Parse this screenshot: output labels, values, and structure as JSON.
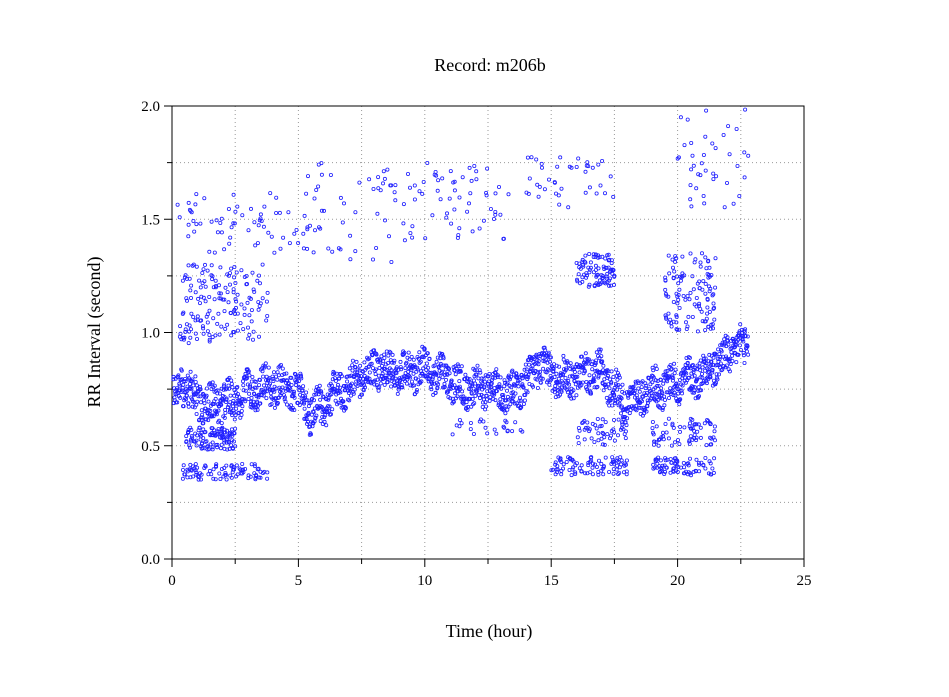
{
  "chart_data": {
    "type": "scatter",
    "title": "Record:  m206b",
    "xlabel": "Time (hour)",
    "ylabel": "RR Interval (second)",
    "xlim": [
      0,
      25
    ],
    "ylim": [
      0,
      2.0
    ],
    "x_major_ticks": [
      0,
      5,
      10,
      15,
      20,
      25
    ],
    "x_tick_labels": [
      "0",
      "5",
      "10",
      "15",
      "20",
      "25"
    ],
    "y_major_ticks": [
      0.0,
      0.5,
      1.0,
      1.5,
      2.0
    ],
    "y_tick_labels": [
      "0.0",
      "0.5",
      "1.0",
      "1.5",
      "2.0"
    ],
    "grid": true,
    "marker": "open-circle",
    "color": "#1f1fff",
    "baseline_trend": [
      {
        "x": 0.0,
        "y": 0.72
      },
      {
        "x": 0.5,
        "y": 0.78
      },
      {
        "x": 1.0,
        "y": 0.7
      },
      {
        "x": 1.5,
        "y": 0.68
      },
      {
        "x": 2.0,
        "y": 0.7
      },
      {
        "x": 2.5,
        "y": 0.7
      },
      {
        "x": 3.0,
        "y": 0.74
      },
      {
        "x": 3.5,
        "y": 0.76
      },
      {
        "x": 4.0,
        "y": 0.77
      },
      {
        "x": 4.5,
        "y": 0.76
      },
      {
        "x": 5.0,
        "y": 0.74
      },
      {
        "x": 5.5,
        "y": 0.64
      },
      {
        "x": 6.0,
        "y": 0.68
      },
      {
        "x": 6.5,
        "y": 0.74
      },
      {
        "x": 7.0,
        "y": 0.77
      },
      {
        "x": 7.5,
        "y": 0.8
      },
      {
        "x": 8.0,
        "y": 0.84
      },
      {
        "x": 8.5,
        "y": 0.83
      },
      {
        "x": 9.0,
        "y": 0.82
      },
      {
        "x": 9.5,
        "y": 0.83
      },
      {
        "x": 10.0,
        "y": 0.84
      },
      {
        "x": 10.5,
        "y": 0.82
      },
      {
        "x": 11.0,
        "y": 0.78
      },
      {
        "x": 11.5,
        "y": 0.76
      },
      {
        "x": 12.0,
        "y": 0.75
      },
      {
        "x": 12.5,
        "y": 0.76
      },
      {
        "x": 13.0,
        "y": 0.74
      },
      {
        "x": 13.5,
        "y": 0.73
      },
      {
        "x": 14.0,
        "y": 0.78
      },
      {
        "x": 14.5,
        "y": 0.86
      },
      {
        "x": 15.0,
        "y": 0.82
      },
      {
        "x": 15.5,
        "y": 0.8
      },
      {
        "x": 16.0,
        "y": 0.8
      },
      {
        "x": 16.5,
        "y": 0.83
      },
      {
        "x": 17.0,
        "y": 0.82
      },
      {
        "x": 17.5,
        "y": 0.75
      },
      {
        "x": 18.0,
        "y": 0.68
      },
      {
        "x": 18.5,
        "y": 0.72
      },
      {
        "x": 19.0,
        "y": 0.76
      },
      {
        "x": 19.5,
        "y": 0.76
      },
      {
        "x": 20.0,
        "y": 0.78
      },
      {
        "x": 20.5,
        "y": 0.8
      },
      {
        "x": 21.0,
        "y": 0.82
      },
      {
        "x": 21.5,
        "y": 0.86
      },
      {
        "x": 22.0,
        "y": 0.9
      },
      {
        "x": 22.5,
        "y": 0.95
      },
      {
        "x": 22.8,
        "y": 0.92
      }
    ],
    "clusters": [
      {
        "x": [
          0.2,
          3.8
        ],
        "y": [
          0.35,
          0.42
        ],
        "n": 90
      },
      {
        "x": [
          0.5,
          2.5
        ],
        "y": [
          0.48,
          0.58
        ],
        "n": 110
      },
      {
        "x": [
          0.3,
          3.8
        ],
        "y": [
          0.95,
          1.3
        ],
        "n": 160
      },
      {
        "x": [
          0.2,
          5.0
        ],
        "y": [
          1.35,
          1.62
        ],
        "n": 60
      },
      {
        "x": [
          5.0,
          9.0
        ],
        "y": [
          1.3,
          1.75
        ],
        "n": 45
      },
      {
        "x": [
          8.0,
          13.5
        ],
        "y": [
          1.4,
          1.75
        ],
        "n": 70
      },
      {
        "x": [
          14.0,
          17.5
        ],
        "y": [
          1.55,
          1.78
        ],
        "n": 40
      },
      {
        "x": [
          16.0,
          17.5
        ],
        "y": [
          1.2,
          1.35
        ],
        "n": 90
      },
      {
        "x": [
          15.0,
          18.0
        ],
        "y": [
          0.37,
          0.45
        ],
        "n": 90
      },
      {
        "x": [
          16.0,
          18.0
        ],
        "y": [
          0.5,
          0.62
        ],
        "n": 50
      },
      {
        "x": [
          19.0,
          21.5
        ],
        "y": [
          0.37,
          0.45
        ],
        "n": 80
      },
      {
        "x": [
          19.0,
          21.5
        ],
        "y": [
          0.5,
          0.62
        ],
        "n": 70
      },
      {
        "x": [
          19.5,
          21.5
        ],
        "y": [
          1.0,
          1.35
        ],
        "n": 120
      },
      {
        "x": [
          20.0,
          22.8
        ],
        "y": [
          1.55,
          1.99
        ],
        "n": 40
      },
      {
        "x": [
          11.0,
          14.0
        ],
        "y": [
          0.55,
          0.62
        ],
        "n": 25
      }
    ]
  }
}
